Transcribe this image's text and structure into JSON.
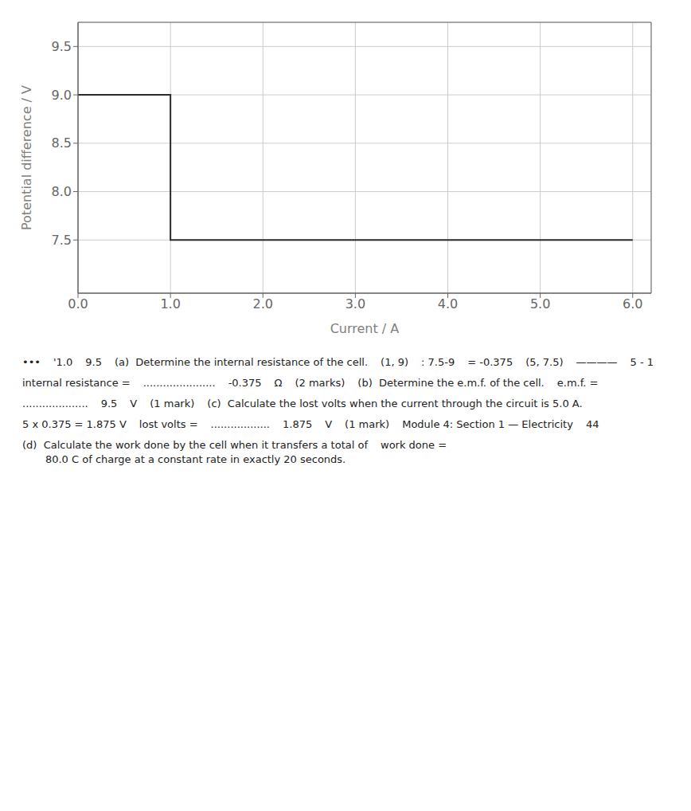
{
  "chart_data": {
    "type": "line",
    "x": [
      0.0,
      1.0,
      1.0,
      6.0
    ],
    "values": [
      9.0,
      9.0,
      7.5,
      7.5
    ],
    "color": "#2b2b2b",
    "x_label": "Current / A",
    "y_label": "Potential difference / V",
    "xlim": [
      0.0,
      6.2
    ],
    "ylim": [
      6.95,
      9.75
    ],
    "xticks": [
      {
        "value": 0,
        "label": "0.0"
      },
      {
        "value": 1,
        "label": "1.0"
      },
      {
        "value": 2,
        "label": "2.0"
      },
      {
        "value": 3,
        "label": "3.0"
      },
      {
        "value": 4,
        "label": "4.0"
      },
      {
        "value": 5,
        "label": "5.0"
      },
      {
        "value": 6,
        "label": "6.0"
      }
    ],
    "yticks": [
      7.5,
      {
        "value": 8,
        "label": "8.0"
      },
      8.5,
      {
        "value": 9,
        "label": "9.0"
      },
      9.5
    ],
    "grid": true,
    "annotations": [
      "•••",
      "'1.0",
      "9.5",
      "(a)  Determine the internal resistance of the cell.",
      "(1, 9)",
      ": 7.5-9",
      "= -0.375",
      "(5, 7.5)",
      "————",
      "5 - 1",
      "internal resistance =",
      "......................",
      "-0.375",
      "Ω",
      "(2 marks)",
      "(b)  Determine the e.m.f. of the cell.",
      "e.m.f. =",
      "....................",
      "9.5",
      "V",
      "(1 mark)",
      "(c)  Calculate the lost volts when the current through the circuit is 5.0 A.",
      "5 x 0.375 = 1.875 V",
      "lost volts =",
      "..................",
      "1.875",
      "V",
      "(1 mark)",
      "Module 4: Section 1 — Electricity",
      "44",
      "(d)  Calculate the work done by the cell when it transfers a total of\n       80.0 C of charge at a constant rate in exactly 20 seconds.",
      "work done ="
    ]
  }
}
